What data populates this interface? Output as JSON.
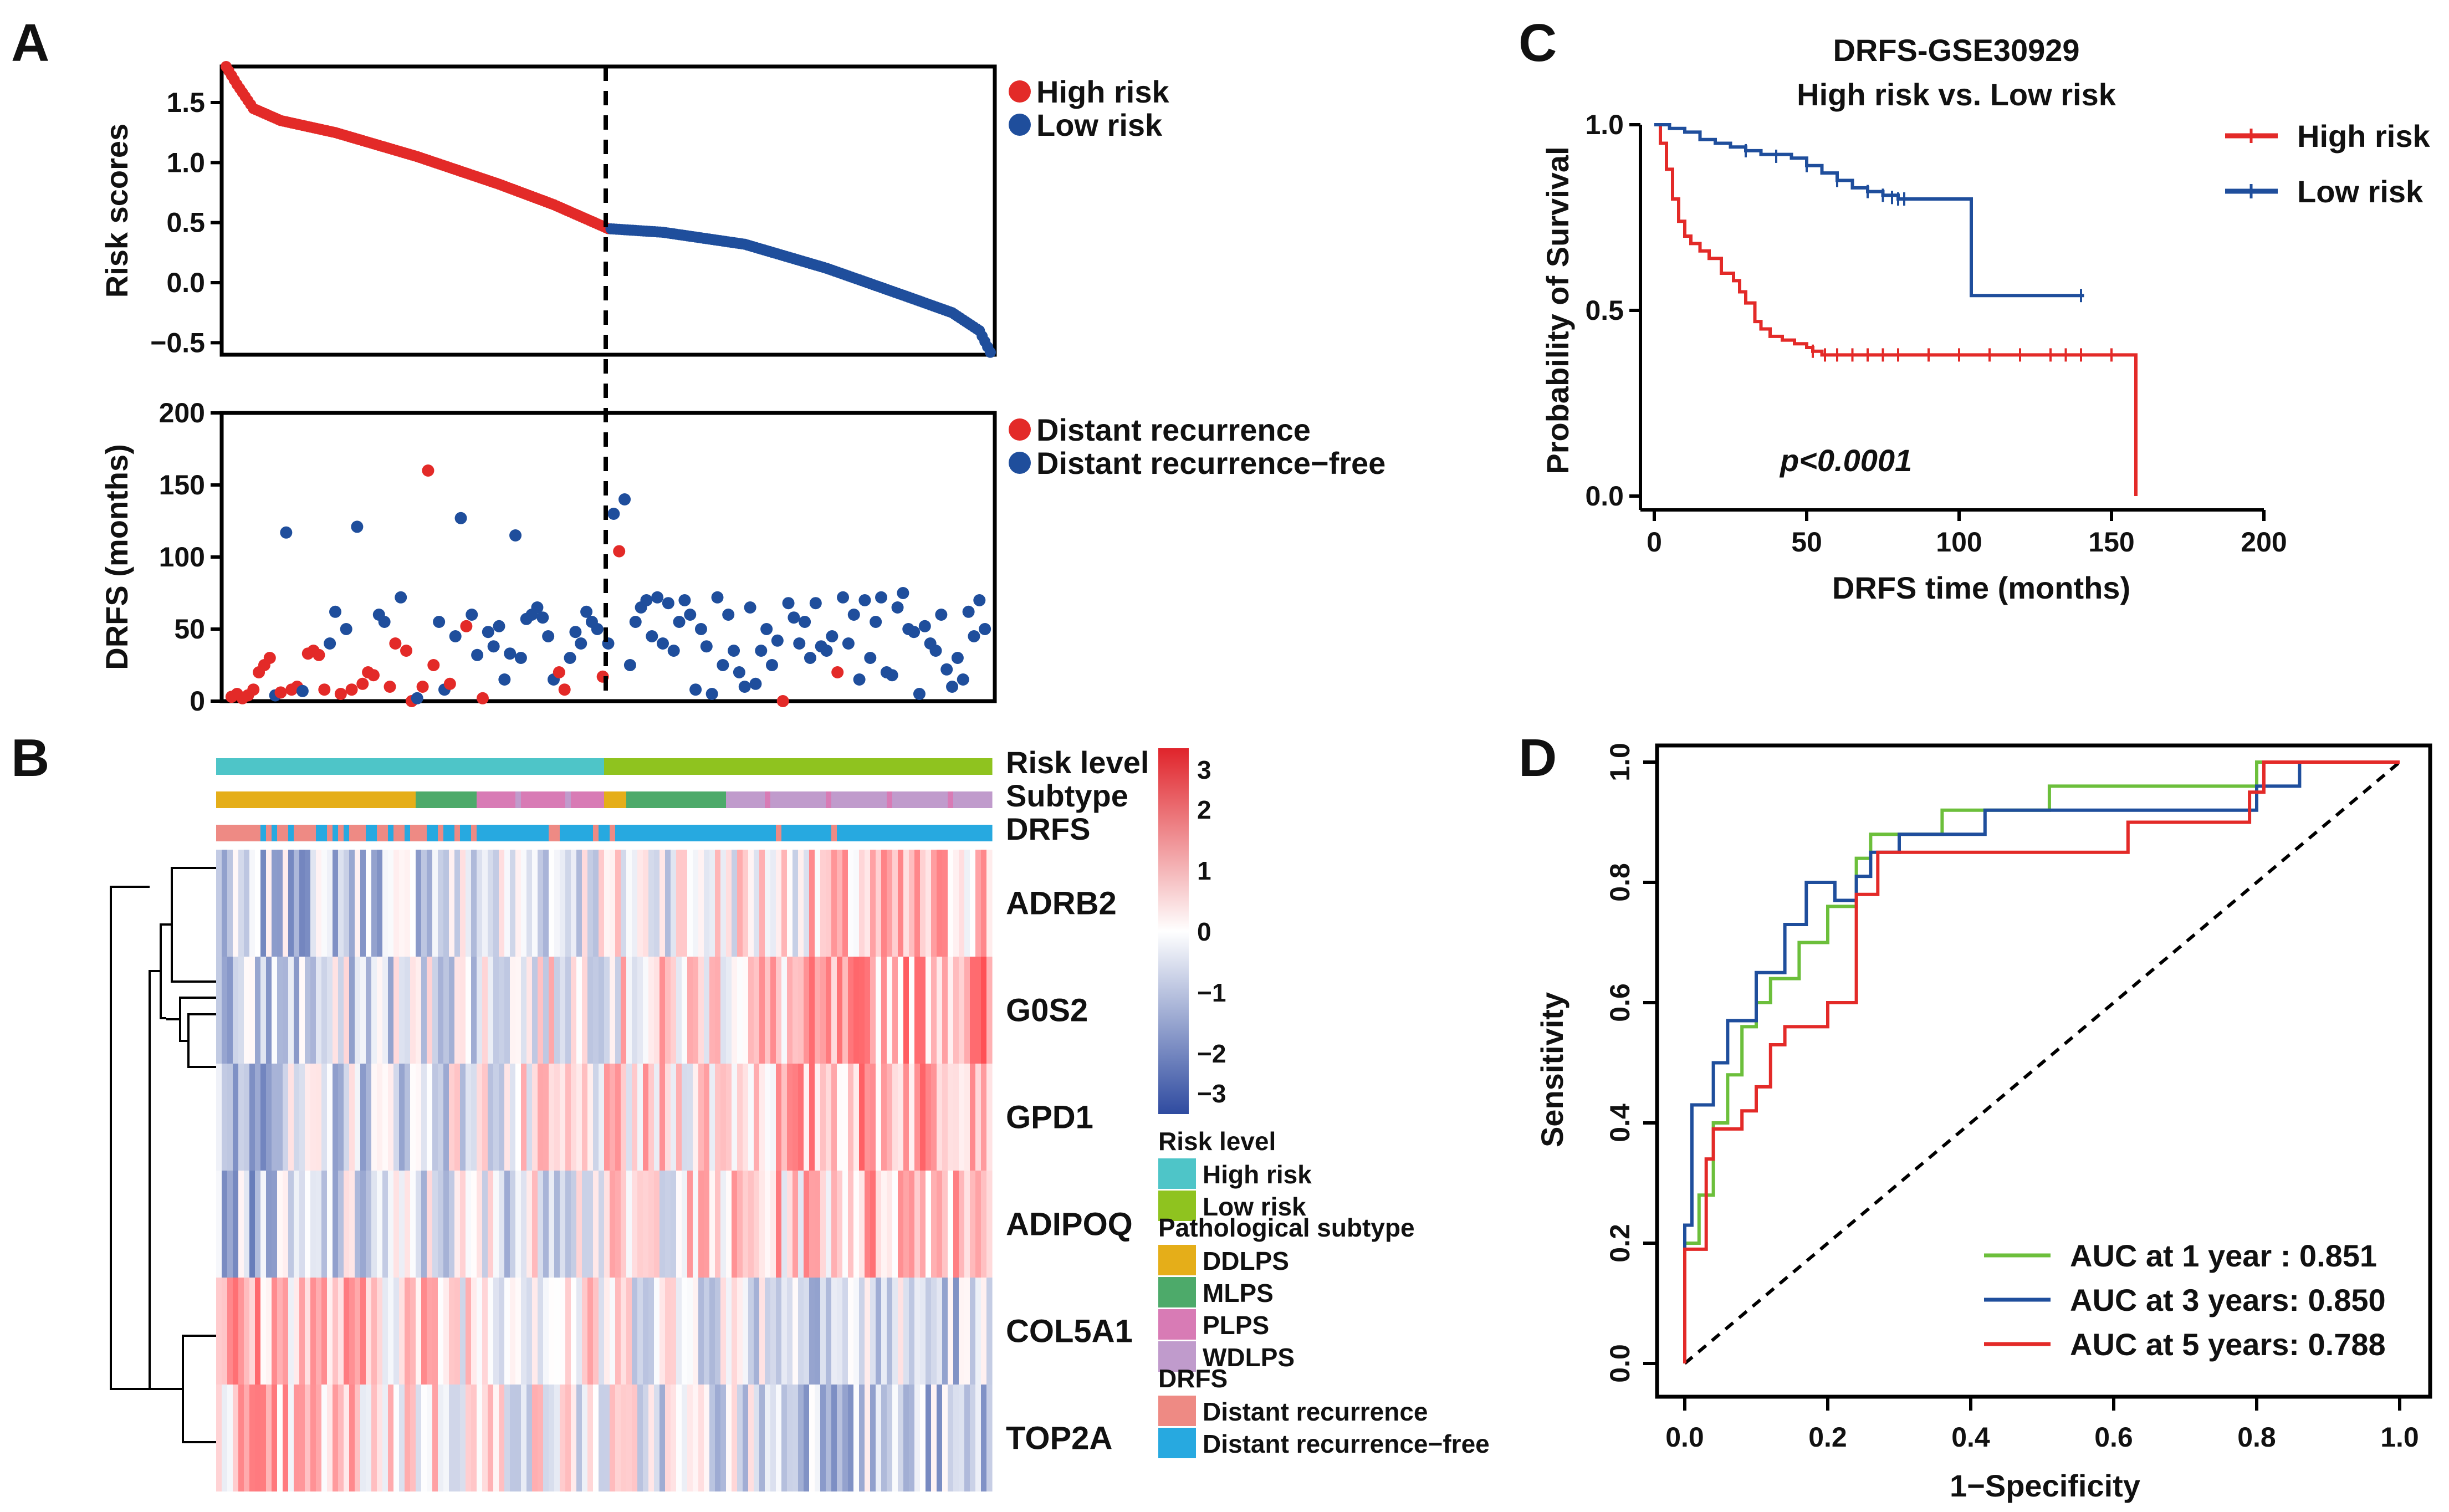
{
  "panels": {
    "a": "A",
    "b": "B",
    "c": "C",
    "d": "D"
  },
  "colors": {
    "high": "#e32a28",
    "low": "#1f4e9c",
    "green": "#6cbf3b",
    "teal": "#4ec5c8",
    "lightgreen": "#8fc31f",
    "ddlps": "#e5ae19",
    "mlps": "#4daa6a",
    "plps": "#d87bb5",
    "wdlps": "#c09bcc",
    "recur": "#ee8a84",
    "free": "#27a9e0"
  },
  "chart_data": [
    {
      "id": "A-top",
      "type": "scatter",
      "title": "",
      "ylabel": "Risk scores",
      "ylim": [
        -0.6,
        1.8
      ],
      "yticks": [
        "1.5",
        "1.0",
        "0.5",
        "0.0",
        "−0.5"
      ],
      "cutoff_index": 70,
      "n": 140,
      "series": [
        {
          "name": "High risk",
          "anchors_index": [
            0,
            2,
            5,
            10,
            20,
            35,
            50,
            60,
            70
          ],
          "anchors_value": [
            1.8,
            1.65,
            1.45,
            1.35,
            1.25,
            1.05,
            0.82,
            0.65,
            0.45
          ]
        },
        {
          "name": "Low risk",
          "anchors_index": [
            70,
            80,
            95,
            110,
            125,
            133,
            138,
            140
          ],
          "anchors_value": [
            0.45,
            0.42,
            0.32,
            0.12,
            -0.12,
            -0.25,
            -0.4,
            -0.58
          ]
        }
      ],
      "legend": [
        "High risk",
        "Low risk"
      ]
    },
    {
      "id": "A-bottom",
      "type": "scatter",
      "ylabel": "DRFS (months)",
      "ylim": [
        0,
        200
      ],
      "yticks": [
        "200",
        "150",
        "100",
        "50",
        "0"
      ],
      "legend": [
        "Distant recurrence",
        "Distant recurrence−free"
      ],
      "points_index": [
        1,
        2,
        3,
        4,
        5,
        6,
        7,
        8,
        9,
        10,
        11,
        12,
        13,
        14,
        15,
        16,
        17,
        18,
        19,
        20,
        21,
        22,
        23,
        24,
        25,
        26,
        27,
        28,
        29,
        30,
        31,
        32,
        33,
        34,
        35,
        36,
        37,
        38,
        39,
        40,
        41,
        42,
        43,
        44,
        45,
        46,
        47,
        48,
        49,
        50,
        51,
        52,
        53,
        54,
        55,
        56,
        57,
        58,
        59,
        60,
        61,
        62,
        63,
        64,
        65,
        66,
        67,
        68,
        69,
        70,
        71,
        72,
        73,
        74,
        75,
        76,
        77,
        78,
        79,
        80,
        81,
        82,
        83,
        84,
        85,
        86,
        87,
        88,
        89,
        90,
        91,
        92,
        93,
        94,
        95,
        96,
        97,
        98,
        99,
        100,
        101,
        102,
        103,
        104,
        105,
        106,
        107,
        108,
        109,
        110,
        111,
        112,
        113,
        114,
        115,
        116,
        117,
        118,
        119,
        120,
        121,
        122,
        123,
        124,
        125,
        126,
        127,
        128,
        129,
        130,
        131,
        132,
        133,
        134,
        135,
        136,
        137,
        138,
        139
      ],
      "points_value": [
        3,
        5,
        2,
        4,
        8,
        20,
        25,
        30,
        4,
        6,
        117,
        8,
        10,
        7,
        33,
        35,
        32,
        8,
        40,
        62,
        5,
        50,
        8,
        121,
        12,
        20,
        18,
        60,
        55,
        10,
        40,
        72,
        35,
        0,
        2,
        10,
        160,
        25,
        55,
        8,
        12,
        45,
        127,
        52,
        60,
        32,
        2,
        48,
        38,
        52,
        15,
        33,
        115,
        30,
        57,
        60,
        65,
        58,
        45,
        15,
        20,
        8,
        30,
        48,
        40,
        62,
        55,
        50,
        17,
        40,
        130,
        104,
        140,
        25,
        55,
        65,
        70,
        45,
        72,
        40,
        68,
        35,
        55,
        70,
        60,
        8,
        50,
        38,
        5,
        72,
        25,
        60,
        35,
        20,
        10,
        65,
        12,
        35,
        50,
        25,
        42,
        0,
        68,
        58,
        40,
        55,
        30,
        68,
        38,
        35,
        45,
        20,
        72,
        40,
        60,
        15,
        70,
        30,
        55,
        72,
        20,
        18,
        65,
        75,
        50,
        48,
        5,
        52,
        40,
        35,
        60,
        22,
        10,
        30,
        15,
        62,
        45,
        70,
        50
      ],
      "points_class": [
        "r",
        "r",
        "r",
        "r",
        "r",
        "r",
        "r",
        "r",
        "b",
        "r",
        "b",
        "r",
        "r",
        "b",
        "r",
        "r",
        "r",
        "r",
        "b",
        "b",
        "r",
        "b",
        "r",
        "b",
        "r",
        "r",
        "r",
        "b",
        "b",
        "r",
        "r",
        "b",
        "r",
        "r",
        "b",
        "r",
        "r",
        "r",
        "b",
        "b",
        "r",
        "b",
        "b",
        "r",
        "b",
        "b",
        "r",
        "b",
        "b",
        "b",
        "b",
        "b",
        "b",
        "b",
        "b",
        "b",
        "b",
        "b",
        "b",
        "b",
        "r",
        "r",
        "b",
        "b",
        "b",
        "b",
        "b",
        "b",
        "r",
        "b",
        "b",
        "r",
        "b",
        "b",
        "b",
        "b",
        "b",
        "b",
        "b",
        "b",
        "b",
        "b",
        "b",
        "b",
        "b",
        "b",
        "b",
        "b",
        "b",
        "b",
        "b",
        "b",
        "b",
        "b",
        "b",
        "b",
        "b",
        "b",
        "b",
        "b",
        "b",
        "r",
        "b",
        "b",
        "b",
        "b",
        "b",
        "b",
        "b",
        "b",
        "b",
        "r",
        "b",
        "b",
        "b",
        "b",
        "b",
        "b",
        "b",
        "b",
        "b",
        "b",
        "b",
        "b",
        "b",
        "b",
        "b",
        "b",
        "b",
        "b",
        "b",
        "b",
        "b",
        "b",
        "b",
        "b",
        "b",
        "b",
        "b"
      ]
    },
    {
      "id": "B",
      "type": "heatmap",
      "genes": [
        "ADRB2",
        "G0S2",
        "GPD1",
        "ADIPOQ",
        "COL5A1",
        "TOP2A"
      ],
      "annotation_rows": [
        "Risk level",
        "Subtype",
        "DRFS"
      ],
      "colorbar_ticks": [
        "3",
        "2",
        "1",
        "0",
        "−1",
        "−2",
        "−3"
      ],
      "colorbar_range": [
        -3,
        3
      ],
      "legend_groups": [
        {
          "title": "Risk level",
          "items": [
            "High risk",
            "Low risk"
          ]
        },
        {
          "title": "Pathological subtype",
          "items": [
            "DDLPS",
            "MLPS",
            "PLPS",
            "WDLPS"
          ]
        },
        {
          "title": "DRFS",
          "items": [
            "Distant recurrence",
            "Distant recurrence−free"
          ]
        }
      ]
    },
    {
      "id": "C",
      "type": "line",
      "title": "DRFS-GSE30929",
      "subtitle": "High risk vs. Low risk",
      "xlabel": "DRFS time (months)",
      "ylabel": "Probability of Survival",
      "xlim": [
        0,
        200
      ],
      "ylim": [
        0,
        1
      ],
      "xticks": [
        "0",
        "50",
        "100",
        "150",
        "200"
      ],
      "yticks": [
        "1.0",
        "0.5",
        "0.0"
      ],
      "annotation": "p<0.0001",
      "series": [
        {
          "name": "High risk",
          "x": [
            0,
            2,
            4,
            6,
            8,
            10,
            12,
            15,
            18,
            22,
            26,
            28,
            30,
            33,
            35,
            38,
            42,
            46,
            50,
            52,
            55,
            158,
            158
          ],
          "y": [
            1.0,
            0.95,
            0.88,
            0.8,
            0.74,
            0.7,
            0.68,
            0.66,
            0.64,
            0.6,
            0.58,
            0.55,
            0.52,
            0.47,
            0.45,
            0.43,
            0.42,
            0.41,
            0.4,
            0.39,
            0.38,
            0.38,
            0.0
          ]
        },
        {
          "name": "Low risk",
          "x": [
            0,
            5,
            10,
            15,
            20,
            25,
            30,
            35,
            45,
            50,
            55,
            60,
            65,
            70,
            75,
            80,
            104,
            104,
            141
          ],
          "y": [
            1.0,
            0.99,
            0.98,
            0.96,
            0.95,
            0.94,
            0.93,
            0.92,
            0.91,
            0.89,
            0.87,
            0.85,
            0.83,
            0.82,
            0.81,
            0.8,
            0.8,
            0.54,
            0.54
          ]
        }
      ]
    },
    {
      "id": "D",
      "type": "line",
      "xlabel": "1−Specificity",
      "ylabel": "Sensitivity",
      "xlim": [
        0,
        1
      ],
      "ylim": [
        0,
        1
      ],
      "xticks": [
        "0.0",
        "0.2",
        "0.4",
        "0.6",
        "0.8",
        "1.0"
      ],
      "yticks": [
        "1.0",
        "0.8",
        "0.6",
        "0.4",
        "0.2",
        "0.0"
      ],
      "series": [
        {
          "name": "AUC at 1 year  : 0.851",
          "x": [
            0.0,
            0.0,
            0.02,
            0.02,
            0.04,
            0.04,
            0.06,
            0.06,
            0.08,
            0.08,
            0.1,
            0.1,
            0.12,
            0.12,
            0.16,
            0.16,
            0.2,
            0.2,
            0.24,
            0.24,
            0.26,
            0.26,
            0.36,
            0.36,
            0.51,
            0.51,
            0.8,
            0.8,
            1.0
          ],
          "y": [
            0.0,
            0.2,
            0.2,
            0.28,
            0.28,
            0.4,
            0.4,
            0.48,
            0.48,
            0.56,
            0.56,
            0.6,
            0.6,
            0.64,
            0.64,
            0.7,
            0.7,
            0.76,
            0.76,
            0.84,
            0.84,
            0.88,
            0.88,
            0.92,
            0.92,
            0.96,
            0.96,
            1.0,
            1.0
          ]
        },
        {
          "name": "AUC at 3 years: 0.850",
          "x": [
            0.0,
            0.0,
            0.01,
            0.01,
            0.04,
            0.04,
            0.06,
            0.06,
            0.1,
            0.1,
            0.14,
            0.14,
            0.17,
            0.17,
            0.21,
            0.21,
            0.24,
            0.24,
            0.26,
            0.26,
            0.3,
            0.3,
            0.42,
            0.42,
            0.8,
            0.8,
            0.86,
            0.86,
            1.0
          ],
          "y": [
            0.0,
            0.23,
            0.23,
            0.43,
            0.43,
            0.5,
            0.5,
            0.57,
            0.57,
            0.65,
            0.65,
            0.73,
            0.73,
            0.8,
            0.8,
            0.77,
            0.77,
            0.81,
            0.81,
            0.85,
            0.85,
            0.88,
            0.88,
            0.92,
            0.92,
            0.96,
            0.96,
            1.0,
            1.0
          ]
        },
        {
          "name": "AUC at 5 years: 0.788",
          "x": [
            0.0,
            0.0,
            0.03,
            0.03,
            0.04,
            0.04,
            0.08,
            0.08,
            0.1,
            0.1,
            0.12,
            0.12,
            0.14,
            0.14,
            0.2,
            0.2,
            0.24,
            0.24,
            0.27,
            0.27,
            0.62,
            0.62,
            0.79,
            0.79,
            0.81,
            0.81,
            1.0
          ],
          "y": [
            0.0,
            0.19,
            0.19,
            0.34,
            0.34,
            0.39,
            0.39,
            0.42,
            0.42,
            0.46,
            0.46,
            0.53,
            0.53,
            0.56,
            0.56,
            0.6,
            0.6,
            0.78,
            0.78,
            0.85,
            0.85,
            0.9,
            0.9,
            0.95,
            0.95,
            1.0,
            1.0
          ]
        }
      ],
      "reference": "diagonal"
    }
  ]
}
